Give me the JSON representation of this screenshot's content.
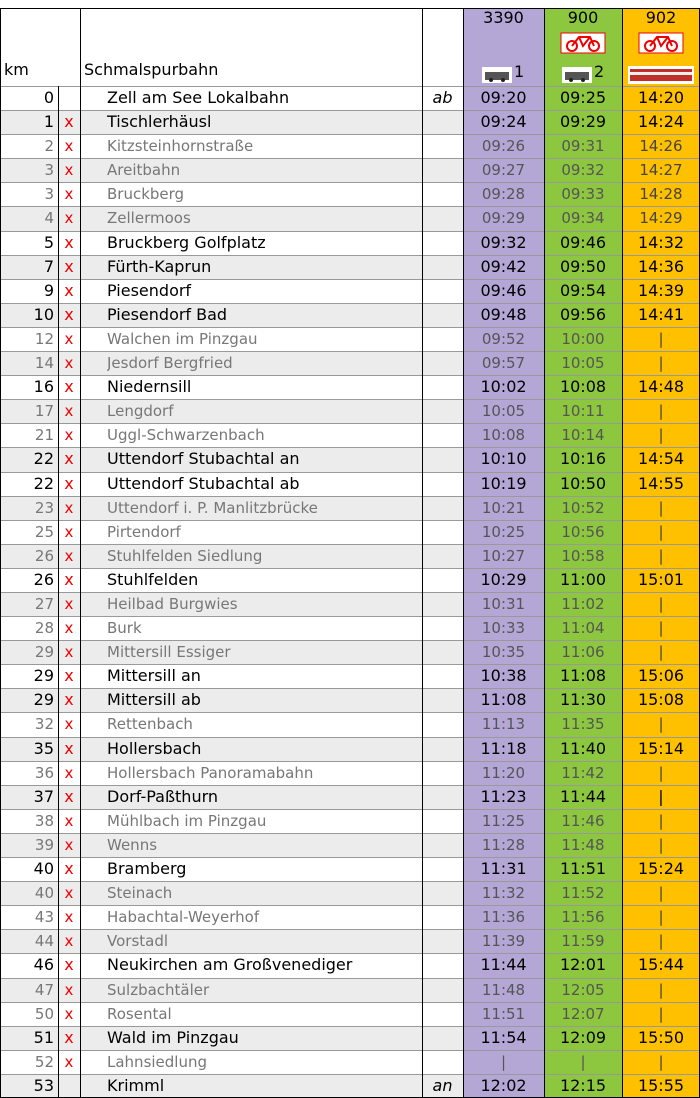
{
  "header": {
    "km": "km",
    "title": "Schmalspurbahn"
  },
  "trains": [
    {
      "number": "3390",
      "note": "1"
    },
    {
      "number": "900",
      "note": "2"
    },
    {
      "number": "902"
    }
  ],
  "rows": [
    {
      "km": "0",
      "station": "Zell am See Lokalbahn",
      "dir": "ab",
      "times": [
        "09:20",
        "09:25",
        "14:20"
      ],
      "bold": true
    },
    {
      "km": "1",
      "x": "x",
      "station": "Tischlerhäusl",
      "times": [
        "09:24",
        "09:29",
        "14:24"
      ],
      "bold": true
    },
    {
      "km": "2",
      "x": "x",
      "station": "Kitzsteinhornstraße",
      "times": [
        "09:26",
        "09:31",
        "14:26"
      ],
      "bold": false
    },
    {
      "km": "3",
      "x": "x",
      "station": "Areitbahn",
      "times": [
        "09:27",
        "09:32",
        "14:27"
      ],
      "bold": false
    },
    {
      "km": "3",
      "x": "x",
      "station": "Bruckberg",
      "times": [
        "09:28",
        "09:33",
        "14:28"
      ],
      "bold": false
    },
    {
      "km": "4",
      "x": "x",
      "station": "Zellermoos",
      "times": [
        "09:29",
        "09:34",
        "14:29"
      ],
      "bold": false
    },
    {
      "km": "5",
      "x": "x",
      "station": "Bruckberg Golfplatz",
      "times": [
        "09:32",
        "09:46",
        "14:32"
      ],
      "bold": true
    },
    {
      "km": "7",
      "x": "x",
      "station": "Fürth-Kaprun",
      "times": [
        "09:42",
        "09:50",
        "14:36"
      ],
      "bold": true
    },
    {
      "km": "9",
      "x": "x",
      "station": "Piesendorf",
      "times": [
        "09:46",
        "09:54",
        "14:39"
      ],
      "bold": true
    },
    {
      "km": "10",
      "x": "x",
      "station": "Piesendorf Bad",
      "times": [
        "09:48",
        "09:56",
        "14:41"
      ],
      "bold": true
    },
    {
      "km": "12",
      "x": "x",
      "station": "Walchen im Pinzgau",
      "times": [
        "09:52",
        "10:00",
        "|"
      ],
      "bold": false
    },
    {
      "km": "14",
      "x": "x",
      "station": "Jesdorf Bergfried",
      "times": [
        "09:57",
        "10:05",
        "|"
      ],
      "bold": false
    },
    {
      "km": "16",
      "x": "x",
      "station": "Niedernsill",
      "times": [
        "10:02",
        "10:08",
        "14:48"
      ],
      "bold": true
    },
    {
      "km": "17",
      "x": "x",
      "station": "Lengdorf",
      "times": [
        "10:05",
        "10:11",
        "|"
      ],
      "bold": false
    },
    {
      "km": "21",
      "x": "x",
      "station": "Uggl-Schwarzenbach",
      "times": [
        "10:08",
        "10:14",
        "|"
      ],
      "bold": false
    },
    {
      "km": "22",
      "x": "x",
      "station": "Uttendorf Stubachtal an",
      "times": [
        "10:10",
        "10:16",
        "14:54"
      ],
      "bold": true
    },
    {
      "km": "22",
      "x": "x",
      "station": "Uttendorf Stubachtal ab",
      "times": [
        "10:19",
        "10:50",
        "14:55"
      ],
      "bold": true
    },
    {
      "km": "23",
      "x": "x",
      "station": "Uttendorf i. P. Manlitzbrücke",
      "times": [
        "10:21",
        "10:52",
        "|"
      ],
      "bold": false
    },
    {
      "km": "25",
      "x": "x",
      "station": "Pirtendorf",
      "times": [
        "10:25",
        "10:56",
        "|"
      ],
      "bold": false
    },
    {
      "km": "26",
      "x": "x",
      "station": "Stuhlfelden Siedlung",
      "times": [
        "10:27",
        "10:58",
        "|"
      ],
      "bold": false
    },
    {
      "km": "26",
      "x": "x",
      "station": "Stuhlfelden",
      "times": [
        "10:29",
        "11:00",
        "15:01"
      ],
      "bold": true
    },
    {
      "km": "27",
      "x": "x",
      "station": "Heilbad Burgwies",
      "times": [
        "10:31",
        "11:02",
        "|"
      ],
      "bold": false
    },
    {
      "km": "28",
      "x": "x",
      "station": "Burk",
      "times": [
        "10:33",
        "11:04",
        "|"
      ],
      "bold": false
    },
    {
      "km": "29",
      "x": "x",
      "station": "Mittersill Essiger",
      "times": [
        "10:35",
        "11:06",
        "|"
      ],
      "bold": false
    },
    {
      "km": "29",
      "x": "x",
      "station": "Mittersill an",
      "times": [
        "10:38",
        "11:08",
        "15:06"
      ],
      "bold": true
    },
    {
      "km": "29",
      "x": "x",
      "station": "Mittersill ab",
      "times": [
        "11:08",
        "11:30",
        "15:08"
      ],
      "bold": true
    },
    {
      "km": "32",
      "x": "x",
      "station": "Rettenbach",
      "times": [
        "11:13",
        "11:35",
        "|"
      ],
      "bold": false
    },
    {
      "km": "35",
      "x": "x",
      "station": "Hollersbach",
      "times": [
        "11:18",
        "11:40",
        "15:14"
      ],
      "bold": true
    },
    {
      "km": "36",
      "x": "x",
      "station": "Hollersbach Panoramabahn",
      "times": [
        "11:20",
        "11:42",
        "|"
      ],
      "bold": false
    },
    {
      "km": "37",
      "x": "x",
      "station": "Dorf-Paßthurn",
      "times": [
        "11:23",
        "11:44",
        "|"
      ],
      "bold": true
    },
    {
      "km": "38",
      "x": "x",
      "station": "Mühlbach im Pinzgau",
      "times": [
        "11:25",
        "11:46",
        "|"
      ],
      "bold": false
    },
    {
      "km": "39",
      "x": "x",
      "station": "Wenns",
      "times": [
        "11:28",
        "11:48",
        "|"
      ],
      "bold": false
    },
    {
      "km": "40",
      "x": "x",
      "station": "Bramberg",
      "times": [
        "11:31",
        "11:51",
        "15:24"
      ],
      "bold": true
    },
    {
      "km": "40",
      "x": "x",
      "station": "Steinach",
      "times": [
        "11:32",
        "11:52",
        "|"
      ],
      "bold": false
    },
    {
      "km": "43",
      "x": "x",
      "station": "Habachtal-Weyerhof",
      "times": [
        "11:36",
        "11:56",
        "|"
      ],
      "bold": false
    },
    {
      "km": "44",
      "x": "x",
      "station": "Vorstadl",
      "times": [
        "11:39",
        "11:59",
        "|"
      ],
      "bold": false
    },
    {
      "km": "46",
      "x": "x",
      "station": "Neukirchen am Großvenediger",
      "times": [
        "11:44",
        "12:01",
        "15:44"
      ],
      "bold": true
    },
    {
      "km": "47",
      "x": "x",
      "station": "Sulzbachtäler",
      "times": [
        "11:48",
        "12:05",
        "|"
      ],
      "bold": false
    },
    {
      "km": "50",
      "x": "x",
      "station": "Rosental",
      "times": [
        "11:51",
        "12:07",
        "|"
      ],
      "bold": false
    },
    {
      "km": "51",
      "x": "x",
      "station": "Wald im Pinzgau",
      "times": [
        "11:54",
        "12:09",
        "15:50"
      ],
      "bold": true
    },
    {
      "km": "52",
      "x": "x",
      "station": "Lahnsiedlung",
      "times": [
        "|",
        "|",
        "|"
      ],
      "bold": false
    },
    {
      "km": "53",
      "station": "Krimml",
      "dir": "an",
      "times": [
        "12:02",
        "12:15",
        "15:55"
      ],
      "bold": true
    }
  ]
}
